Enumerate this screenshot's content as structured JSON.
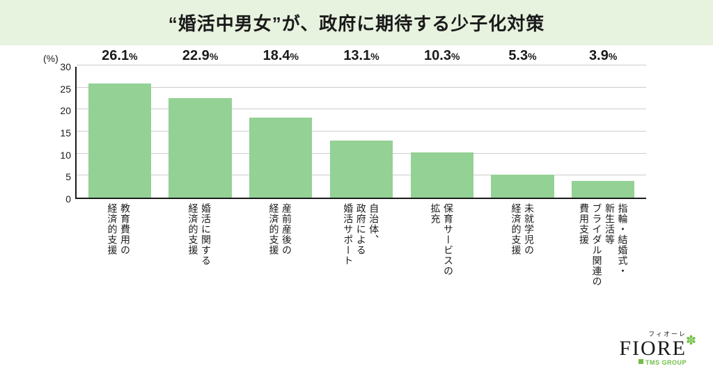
{
  "title": "“婚活中男女”が、政府に期待する少子化対策",
  "chart": {
    "type": "bar",
    "y_unit": "(%)",
    "ylim": [
      0,
      30
    ],
    "ytick_step": 5,
    "yticks": [
      0,
      5,
      10,
      15,
      20,
      25,
      30
    ],
    "bar_color": "#93d195",
    "axis_color": "#1a1a1a",
    "grid_color": "#cccccc",
    "background_color": "#ffffff",
    "value_fontsize": 20,
    "percent_fontsize": 14,
    "tick_fontsize": 14,
    "category_fontsize": 14,
    "bar_width_ratio": 0.78,
    "categories": [
      [
        "教育費用の",
        "経済的支援"
      ],
      [
        "婚活に関する",
        "経済的支援"
      ],
      [
        "産前産後の",
        "経済的支援"
      ],
      [
        "自治体、",
        "政府による",
        "婚活サポート"
      ],
      [
        "保育サービスの",
        "拡充"
      ],
      [
        "未就学児の",
        "経済的支援"
      ],
      [
        "指輪・結婚式・",
        "新生活等",
        "ブライダル関連の",
        "費用支援"
      ]
    ],
    "values": [
      26.1,
      22.9,
      18.4,
      13.1,
      10.3,
      5.3,
      3.9
    ],
    "value_suffix": "%"
  },
  "title_style": {
    "background_color": "#e7f2df",
    "fontsize": 26,
    "color": "#1a1a1a"
  },
  "logo": {
    "kana": "フィオーレ",
    "main": "FIORE",
    "sub": "TMS GROUP",
    "accent_color": "#6fbf44"
  }
}
